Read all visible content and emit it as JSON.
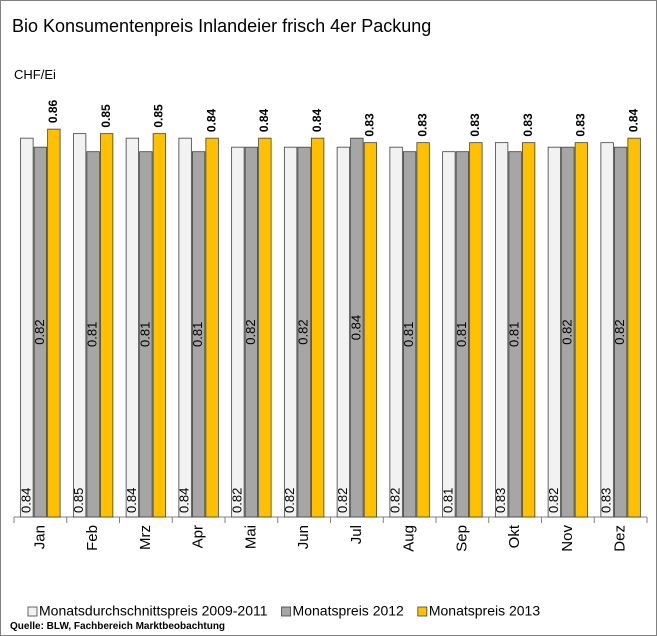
{
  "chart_data": {
    "type": "bar",
    "title": "Bio Konsumentenpreis Inlandeier frisch 4er Packung",
    "y_label": "CHF/Ei",
    "source": "Quelle: BLW, Fachbereich Marktbeobachtung",
    "categories": [
      "Jan",
      "Feb",
      "Mrz",
      "Apr",
      "Mai",
      "Jun",
      "Jul",
      "Aug",
      "Sep",
      "Okt",
      "Nov",
      "Dez"
    ],
    "ylim": [
      0,
      1
    ],
    "series": [
      {
        "name": "Monatsdurchschnittspreis 2009-2011",
        "color": "#f2f2f2",
        "values": [
          0.84,
          0.85,
          0.84,
          0.84,
          0.82,
          0.82,
          0.82,
          0.82,
          0.81,
          0.83,
          0.82,
          0.83
        ]
      },
      {
        "name": "Monatspreis 2012",
        "color": "#a6a6a6",
        "values": [
          0.82,
          0.81,
          0.81,
          0.81,
          0.82,
          0.82,
          0.84,
          0.81,
          0.81,
          0.81,
          0.82,
          0.82
        ]
      },
      {
        "name": "Monatspreis 2013",
        "color": "#ffc000",
        "values": [
          0.86,
          0.85,
          0.85,
          0.84,
          0.84,
          0.84,
          0.83,
          0.83,
          0.83,
          0.83,
          0.83,
          0.84
        ]
      }
    ]
  }
}
